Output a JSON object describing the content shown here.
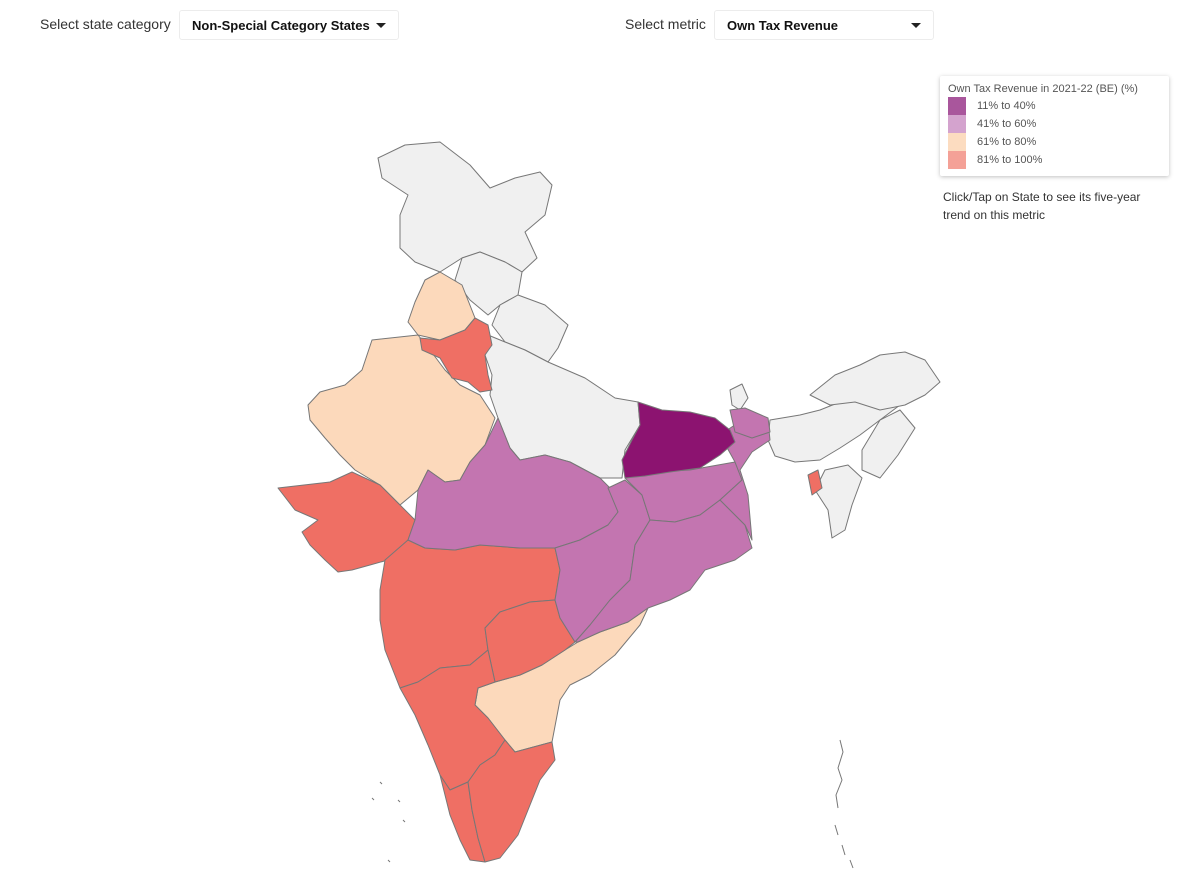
{
  "controls": {
    "category_label": "Select state category",
    "category_value": "Non-Special Category States",
    "metric_label": "Select metric",
    "metric_value": "Own Tax Revenue"
  },
  "legend": {
    "title": "Own Tax Revenue in 2021-22 (BE) (%)",
    "items": [
      {
        "label": "11% to 40%",
        "color": "#a9569c"
      },
      {
        "label": "41% to 60%",
        "color": "#d4a3ce"
      },
      {
        "label": "61% to 80%",
        "color": "#fcdcc0"
      },
      {
        "label": "81% to 100%",
        "color": "#f4a197"
      }
    ]
  },
  "hint": "Click/Tap on State to see its five-year trend on this metric",
  "map_colors": {
    "no_data": "#f0f0f0",
    "bin_11_40": "#8c1370",
    "bin_41_60": "#c375b0",
    "bin_61_80": "#fcd9bb",
    "bin_81_100": "#ef6f64"
  }
}
